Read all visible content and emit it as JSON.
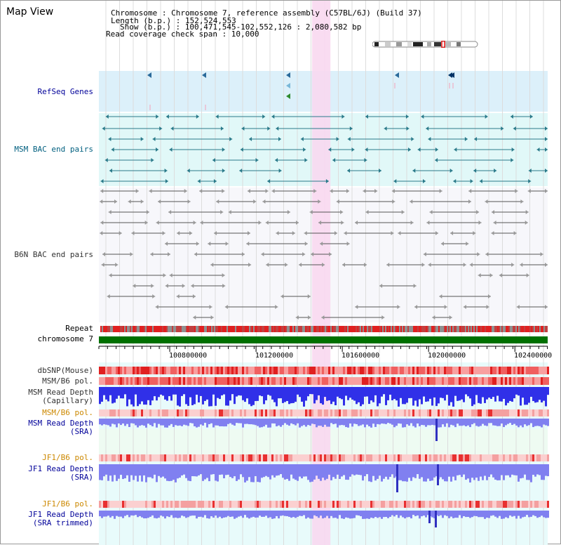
{
  "page": {
    "title": "Map View"
  },
  "info": {
    "lines": [
      "Chromosome      : Chromosome 7, reference assembly (C57BL/6J) (Build 37)",
      "Length (b.p.) : 152,524,553",
      "Show (b.p.) : 100,471,545-102,552,126 : 2,080,582 bp",
      "Read coverage check span : 10,000"
    ]
  },
  "tracks": [
    {
      "id": "refseq",
      "label": "RefSeq Genes",
      "color": "#000099"
    },
    {
      "id": "msm_bac",
      "label": "MSM BAC end pairs",
      "color": "#005f7f"
    },
    {
      "id": "b6n_bac",
      "label": "B6N BAC end pairs",
      "color": "#333333"
    },
    {
      "id": "repeat",
      "label": "Repeat",
      "color": "#000000"
    },
    {
      "id": "chrom",
      "label": "chromosome 7",
      "color": "#000000"
    },
    {
      "id": "dbsnp",
      "label": "dbSNP(Mouse)",
      "color": "#333333"
    },
    {
      "id": "msm_b6",
      "label": "MSM/B6 pol.",
      "color": "#333333"
    },
    {
      "id": "msm_depth_cap",
      "label": "MSM Read Depth\n(Capillary)",
      "color": "#333333"
    },
    {
      "id": "msm_b6_sra",
      "label": "MSM/B6 pol.",
      "color": "#cc8800"
    },
    {
      "id": "msm_depth_sra",
      "label": "MSM Read Depth\n(SRA)",
      "color": "#000099"
    },
    {
      "id": "jf1_b6",
      "label": "JF1/B6 pol.",
      "color": "#cc8800"
    },
    {
      "id": "jf1_depth",
      "label": "JF1 Read Depth\n(SRA)",
      "color": "#000099"
    },
    {
      "id": "jf1_b6_t",
      "label": "JF1/B6 pol.",
      "color": "#cc8800"
    },
    {
      "id": "jf1_depth_t",
      "label": "JF1 Read Depth\n(SRA trimmed)",
      "color": "#000099"
    }
  ],
  "axis": {
    "start": 100471545,
    "end": 102552126,
    "ticks": [
      "100800000",
      "101200000",
      "101600000",
      "102000000",
      "102400000"
    ]
  },
  "highlight": {
    "from": 101460000,
    "to": 101545000
  },
  "colors": {
    "refseq_bg": "#dcf0fa",
    "msm_bg": "#e1f8f8",
    "b6n_bg": "#f7f7fb",
    "lower_bg": "#e8fbfb",
    "msm_sra_bg": "#eefbf2",
    "highlight": "#f8d8ef",
    "chrom_bar": "#007000",
    "depth": "#8080f0",
    "depth_cap": "#3030e8",
    "snp": "#f07070"
  }
}
